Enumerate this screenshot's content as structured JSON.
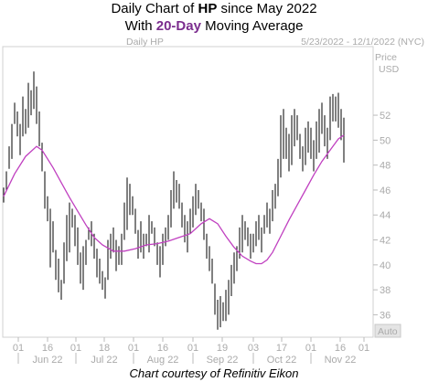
{
  "header": {
    "line1_prefix": "Daily Chart of ",
    "ticker": "HP",
    "line1_suffix": " since May 2022",
    "line2_prefix": "With ",
    "ma_label": "20-Day",
    "line2_suffix": " Moving Average",
    "accent_color": "#7b2d8e"
  },
  "footer": {
    "credit": "Chart courtesy of Refinitiv Eikon"
  },
  "chart_data": {
    "type": "ohlc",
    "symbol_label": "Daily HP",
    "date_range": "5/23/2022 - 12/1/2022 (NYC)",
    "y_axis_title": [
      "Price",
      "USD"
    ],
    "auto_label": "Auto",
    "ylim": [
      34.2,
      57.5
    ],
    "y_ticks": [
      36,
      38,
      40,
      42,
      44,
      46,
      48,
      50,
      52
    ],
    "grid": false,
    "x_ticks": [
      "01",
      "16",
      "01",
      "18",
      "01",
      "16",
      "01",
      "19",
      "03",
      "17",
      "01",
      "16",
      "01"
    ],
    "months": [
      "Jun 22",
      "Jul 22",
      "Aug 22",
      "Sep 22",
      "Oct 22",
      "Nov 22"
    ],
    "bar_color": "#000000",
    "ma_color": "#c040c0",
    "ohlc": [
      [
        46.2,
        45.0
      ],
      [
        46.0,
        47.5
      ],
      [
        47.7,
        49.5
      ],
      [
        48.5,
        51.3
      ],
      [
        51.3,
        53.0
      ],
      [
        50.3,
        52.3
      ],
      [
        48.8,
        51.3
      ],
      [
        50.3,
        53.5
      ],
      [
        50.5,
        52.5
      ],
      [
        51.0,
        54.6
      ],
      [
        52.0,
        54.0
      ],
      [
        52.5,
        55.5
      ],
      [
        51.3,
        54.3
      ],
      [
        49.5,
        52.3
      ],
      [
        47.5,
        49.8
      ],
      [
        44.5,
        47.5
      ],
      [
        43.5,
        45.5
      ],
      [
        39.8,
        44.5
      ],
      [
        41.0,
        43.5
      ],
      [
        38.8,
        41.2
      ],
      [
        37.8,
        40.5
      ],
      [
        37.2,
        38.8
      ],
      [
        38.5,
        41.8
      ],
      [
        40.3,
        44.0
      ],
      [
        41.0,
        45.0
      ],
      [
        43.0,
        44.5
      ],
      [
        41.5,
        44.0
      ],
      [
        40.0,
        43.0
      ],
      [
        38.5,
        41.0
      ],
      [
        38.0,
        41.5
      ],
      [
        40.0,
        42.0
      ],
      [
        42.0,
        43.0
      ],
      [
        41.5,
        43.5
      ],
      [
        40.5,
        42.5
      ],
      [
        39.0,
        41.3
      ],
      [
        38.5,
        40.5
      ],
      [
        38.0,
        39.5
      ],
      [
        37.3,
        39.0
      ],
      [
        38.8,
        42.0
      ],
      [
        40.5,
        42.5
      ],
      [
        41.0,
        43.0
      ],
      [
        39.5,
        42.0
      ],
      [
        40.0,
        41.5
      ],
      [
        40.0,
        42.5
      ],
      [
        42.0,
        45.0
      ],
      [
        42.8,
        47.0
      ],
      [
        44.0,
        46.5
      ],
      [
        44.0,
        45.5
      ],
      [
        42.5,
        44.5
      ],
      [
        40.5,
        42.8
      ],
      [
        41.0,
        43.5
      ],
      [
        40.5,
        42.5
      ],
      [
        41.5,
        42.5
      ],
      [
        41.0,
        44.0
      ],
      [
        42.5,
        43.5
      ],
      [
        41.5,
        43.0
      ],
      [
        40.0,
        41.8
      ],
      [
        39.0,
        41.5
      ],
      [
        40.0,
        42.5
      ],
      [
        41.5,
        43.0
      ],
      [
        42.0,
        44.0
      ],
      [
        43.0,
        46.0
      ],
      [
        44.5,
        47.5
      ],
      [
        45.0,
        46.8
      ],
      [
        44.5,
        46.5
      ],
      [
        43.0,
        45.0
      ],
      [
        41.8,
        44.0
      ],
      [
        41.0,
        43.5
      ],
      [
        42.5,
        44.5
      ],
      [
        43.0,
        45.5
      ],
      [
        44.0,
        46.5
      ],
      [
        44.5,
        46.0
      ],
      [
        43.5,
        45.0
      ],
      [
        42.0,
        44.5
      ],
      [
        40.5,
        42.5
      ],
      [
        39.5,
        41.5
      ],
      [
        38.5,
        40.5
      ],
      [
        36.0,
        38.5
      ],
      [
        34.8,
        37.2
      ],
      [
        35.0,
        37.5
      ],
      [
        35.5,
        37.0
      ],
      [
        35.5,
        38.0
      ],
      [
        36.0,
        38.8
      ],
      [
        37.5,
        40.0
      ],
      [
        38.5,
        41.0
      ],
      [
        39.5,
        41.5
      ],
      [
        40.5,
        43.0
      ],
      [
        41.0,
        44.0
      ],
      [
        42.0,
        43.5
      ],
      [
        41.5,
        43.0
      ],
      [
        40.5,
        42.5
      ],
      [
        41.0,
        42.5
      ],
      [
        41.5,
        43.5
      ],
      [
        42.0,
        44.0
      ],
      [
        41.0,
        43.0
      ],
      [
        42.5,
        44.0
      ],
      [
        43.0,
        45.0
      ],
      [
        42.5,
        44.5
      ],
      [
        43.5,
        46.0
      ],
      [
        44.5,
        46.5
      ],
      [
        45.5,
        48.5
      ],
      [
        47.0,
        52.0
      ],
      [
        48.5,
        52.5
      ],
      [
        48.5,
        51.0
      ],
      [
        47.5,
        50.5
      ],
      [
        48.0,
        52.0
      ],
      [
        49.5,
        52.5
      ],
      [
        50.0,
        52.0
      ],
      [
        48.5,
        50.5
      ],
      [
        47.5,
        49.5
      ],
      [
        48.0,
        51.0
      ],
      [
        49.0,
        51.5
      ],
      [
        48.5,
        51.0
      ],
      [
        47.5,
        50.0
      ],
      [
        48.5,
        51.5
      ],
      [
        49.0,
        52.5
      ],
      [
        50.5,
        53.0
      ],
      [
        49.5,
        52.0
      ],
      [
        48.5,
        51.0
      ],
      [
        50.0,
        53.5
      ],
      [
        51.5,
        53.7
      ],
      [
        51.5,
        53.5
      ],
      [
        51.0,
        53.8
      ],
      [
        50.0,
        52.5
      ],
      [
        48.2,
        51.8
      ]
    ],
    "ma_series": [
      [
        0,
        45.5
      ],
      [
        4,
        47.3
      ],
      [
        8,
        48.7
      ],
      [
        12,
        49.5
      ],
      [
        14,
        49.2
      ],
      [
        18,
        47.8
      ],
      [
        21,
        46.6
      ],
      [
        24,
        45.4
      ],
      [
        27,
        44.3
      ],
      [
        30,
        43.2
      ],
      [
        33,
        42.2
      ],
      [
        36,
        41.6
      ],
      [
        40,
        41.1
      ],
      [
        44,
        41.1
      ],
      [
        48,
        41.3
      ],
      [
        52,
        41.6
      ],
      [
        56,
        41.7
      ],
      [
        60,
        41.9
      ],
      [
        64,
        42.2
      ],
      [
        68,
        42.5
      ],
      [
        72,
        43.3
      ],
      [
        75,
        43.7
      ],
      [
        78,
        43.3
      ],
      [
        81,
        42.3
      ],
      [
        84,
        41.4
      ],
      [
        87,
        40.7
      ],
      [
        90,
        40.3
      ],
      [
        92,
        40.1
      ],
      [
        94,
        40.1
      ],
      [
        96,
        40.4
      ],
      [
        98,
        41.0
      ],
      [
        101,
        42.3
      ],
      [
        104,
        43.6
      ],
      [
        107,
        44.8
      ],
      [
        110,
        46.0
      ],
      [
        113,
        47.2
      ],
      [
        116,
        48.3
      ],
      [
        119,
        49.2
      ],
      [
        122,
        50.1
      ],
      [
        124,
        50.4
      ]
    ]
  }
}
